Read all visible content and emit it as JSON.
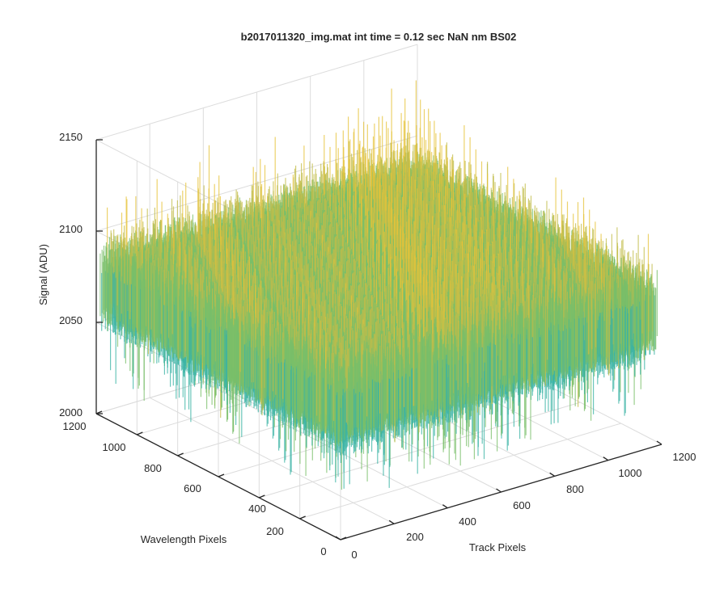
{
  "chart_data": {
    "type": "surface",
    "title": "b2017011320_img.mat int time = 0.12 sec  NaN nm BS02",
    "zlabel": "Signal (ADU)",
    "xlabel": "Track Pixels",
    "ylabel": "Wavelength Pixels",
    "xlim": [
      0,
      1200
    ],
    "ylim": [
      0,
      1200
    ],
    "zlim": [
      2000,
      2150
    ],
    "x_ticks": [
      "0",
      "200",
      "400",
      "600",
      "800",
      "1000",
      "1200"
    ],
    "y_ticks": [
      "0",
      "200",
      "400",
      "600",
      "800",
      "1000",
      "1200"
    ],
    "z_ticks": [
      "2000",
      "2050",
      "2100",
      "2150"
    ],
    "grid": true,
    "colormap": "parula",
    "colors": [
      "#0f5cdd",
      "#1a8be0",
      "#1fa6c9",
      "#3ab3a4",
      "#7abf6a",
      "#c2bc49",
      "#e6c33a"
    ],
    "surface_summary": {
      "mean_signal": 2075,
      "min_signal": 2020,
      "max_signal": 2135
    }
  }
}
